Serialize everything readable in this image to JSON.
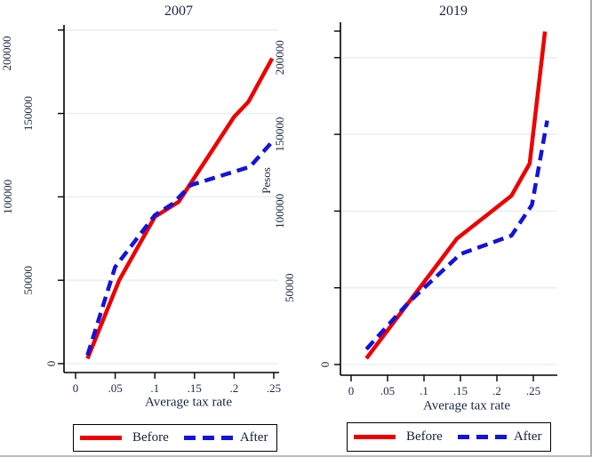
{
  "figure": {
    "background": "#ffffff",
    "edge_color": "#a9adb3"
  },
  "colors": {
    "before": "#ee0000",
    "after": "#1313dc",
    "grid": "#e2edf4",
    "axis": "#000000",
    "text": "#1a2744"
  },
  "legend": {
    "before_label": "Before",
    "after_label": "After"
  },
  "chart_data": [
    {
      "type": "line",
      "title": "2007",
      "xlabel": "Average tax rate",
      "ylabel": "",
      "xlim": [
        0,
        0.257
      ],
      "ylim": [
        0,
        200000
      ],
      "grid": true,
      "legend_position": "bottom",
      "xticks": [
        0,
        0.05,
        0.1,
        0.15,
        0.2,
        0.25
      ],
      "xtick_labels": [
        "0",
        ".05",
        ".1",
        ".15",
        ".2",
        ".25"
      ],
      "yticks": [
        0,
        50000,
        100000,
        150000,
        200000
      ],
      "ytick_labels": [
        "0",
        "50000",
        "100000",
        "150000",
        "200000"
      ],
      "series": [
        {
          "name": "Before",
          "style": "solid",
          "color": "#ee0000",
          "points": [
            [
              0.015,
              3000
            ],
            [
              0.055,
              50000
            ],
            [
              0.1,
              88000
            ],
            [
              0.13,
              97000
            ],
            [
              0.2,
              148000
            ],
            [
              0.218,
              157000
            ],
            [
              0.248,
              183000
            ]
          ]
        },
        {
          "name": "After",
          "style": "dashed",
          "color": "#1313dc",
          "points": [
            [
              0.015,
              5000
            ],
            [
              0.05,
              58000
            ],
            [
              0.1,
              89000
            ],
            [
              0.123,
              96000
            ],
            [
              0.145,
              107000
            ],
            [
              0.22,
              118000
            ],
            [
              0.248,
              133000
            ]
          ]
        }
      ]
    },
    {
      "type": "line",
      "title": "2019",
      "xlabel": "Average tax rate",
      "ylabel": "Pesos",
      "xlim": [
        0,
        0.283
      ],
      "ylim": [
        0,
        223000
      ],
      "grid": true,
      "legend_position": "bottom",
      "xticks": [
        0,
        0.05,
        0.1,
        0.15,
        0.2,
        0.25
      ],
      "xtick_labels": [
        "0",
        ".05",
        ".1",
        ".15",
        ".2",
        ".25"
      ],
      "yticks": [
        0,
        50000,
        100000,
        150000,
        200000
      ],
      "ytick_labels": [
        "0",
        "50000",
        "100000",
        "150000",
        "200000"
      ],
      "series": [
        {
          "name": "Before",
          "style": "solid",
          "color": "#ee0000",
          "points": [
            [
              0.021,
              4000
            ],
            [
              0.145,
              82000
            ],
            [
              0.18,
              95000
            ],
            [
              0.22,
              110000
            ],
            [
              0.245,
              131000
            ],
            [
              0.266,
              217000
            ]
          ]
        },
        {
          "name": "After",
          "style": "dashed",
          "color": "#1313dc",
          "points": [
            [
              0.021,
              10000
            ],
            [
              0.08,
              41000
            ],
            [
              0.15,
              72000
            ],
            [
              0.22,
              84000
            ],
            [
              0.248,
              104000
            ],
            [
              0.269,
              159000
            ]
          ]
        }
      ]
    }
  ]
}
